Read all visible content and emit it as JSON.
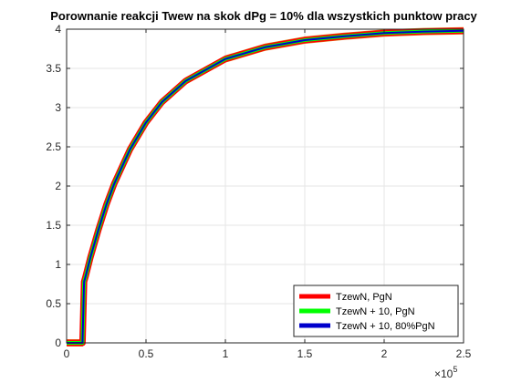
{
  "chart_data": {
    "type": "line",
    "title": "Porownanie reakcji Twew na skok dPg = 10% dla wszystkich punktow pracy",
    "xlabel": "",
    "ylabel": "",
    "x_exponent_label": "×10",
    "x_exponent_power": "5",
    "xlim": [
      0,
      250000
    ],
    "ylim": [
      0,
      4
    ],
    "xticks": [
      0,
      50000,
      100000,
      150000,
      200000,
      250000
    ],
    "xtick_labels": [
      "0",
      "0.5",
      "1",
      "1.5",
      "2",
      "2.5"
    ],
    "yticks": [
      0,
      0.5,
      1,
      1.5,
      2,
      2.5,
      3,
      3.5,
      4
    ],
    "ytick_labels": [
      "0",
      "0.5",
      "1",
      "1.5",
      "2",
      "2.5",
      "3",
      "3.5",
      "4"
    ],
    "grid": true,
    "legend_position": "bottom-right",
    "step_time": 10000,
    "x": [
      0,
      9800,
      10000,
      11000,
      12000,
      15000,
      20000,
      25000,
      30000,
      40000,
      50000,
      60000,
      75000,
      100000,
      125000,
      150000,
      175000,
      200000,
      225000,
      250000
    ],
    "series": [
      {
        "name": "TzewN, PgN",
        "color": "#ff0000",
        "values": [
          0.0,
          0.0,
          0.0,
          0.78,
          0.85,
          1.09,
          1.44,
          1.76,
          2.03,
          2.47,
          2.81,
          3.07,
          3.34,
          3.62,
          3.77,
          3.86,
          3.91,
          3.95,
          3.97,
          3.98
        ]
      },
      {
        "name": "TzewN + 10, PgN",
        "color": "#00ff00",
        "values": [
          0.0,
          0.0,
          0.0,
          0.78,
          0.85,
          1.09,
          1.44,
          1.76,
          2.03,
          2.47,
          2.81,
          3.07,
          3.34,
          3.62,
          3.77,
          3.86,
          3.91,
          3.95,
          3.97,
          3.98
        ]
      },
      {
        "name": "TzewN + 10, 80%PgN",
        "color": "#0000cc",
        "values": [
          0.0,
          0.0,
          0.0,
          0.78,
          0.85,
          1.09,
          1.44,
          1.76,
          2.03,
          2.47,
          2.81,
          3.07,
          3.34,
          3.62,
          3.77,
          3.86,
          3.91,
          3.95,
          3.97,
          3.98
        ]
      }
    ]
  }
}
